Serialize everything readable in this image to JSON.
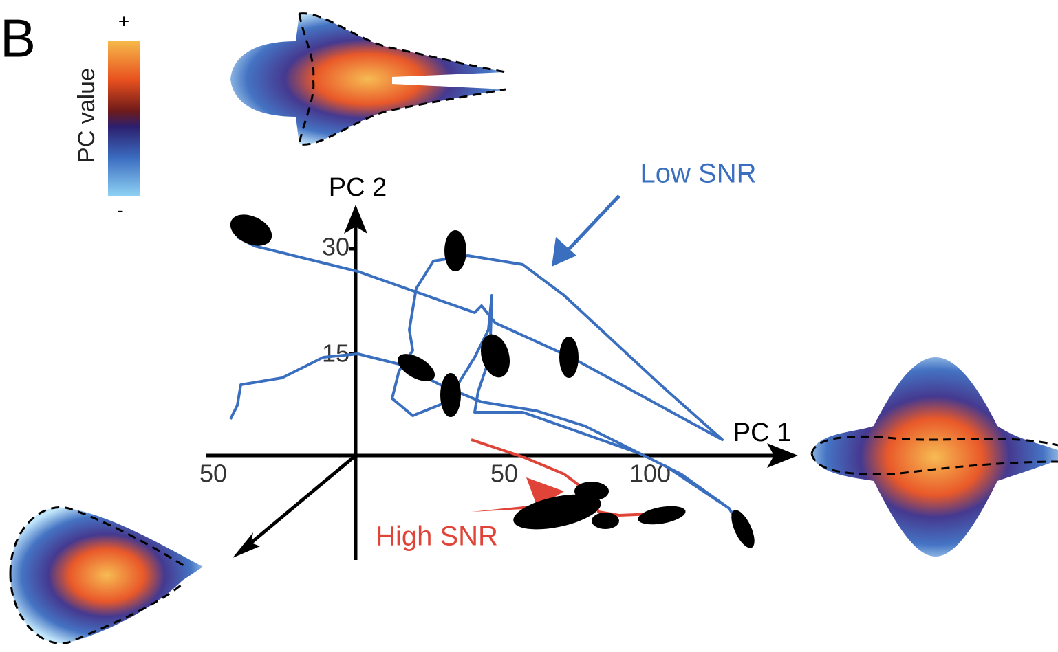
{
  "panel_label": "B",
  "colorbar": {
    "title": "PC value",
    "max_label": "+",
    "min_label": "-"
  },
  "axes": {
    "pc1_label": "PC 1",
    "pc2_label": "PC 2",
    "pc2_ticks": [
      "30",
      "15"
    ],
    "pc1_ticks": [
      "50",
      "50",
      "100"
    ]
  },
  "annotations": {
    "low_snr": "Low SNR",
    "high_snr": "High SNR"
  }
}
